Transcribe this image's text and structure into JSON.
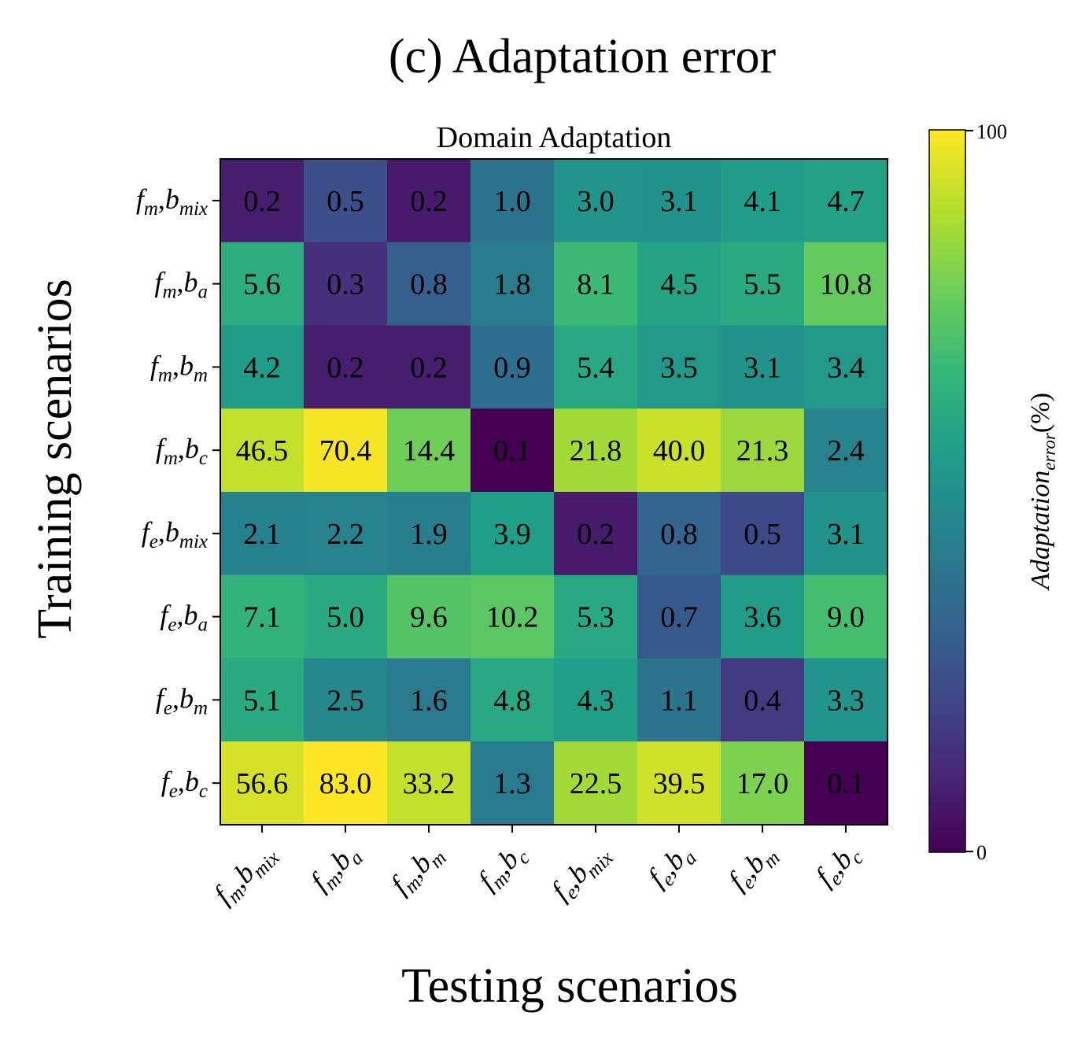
{
  "figure": {
    "suptitle": "(c) Adaptation error",
    "xlabel": "Testing scenarios",
    "ylabel": "Training scenarios"
  },
  "colorbar": {
    "label_main": "Adaptation",
    "label_sub": "error",
    "label_suffix": "(%)",
    "min": 0,
    "max": 100,
    "min_label": "0",
    "max_label": "100",
    "colormap": "viridis",
    "colormap_stops": [
      "#440154",
      "#482878",
      "#3e4a89",
      "#31688e",
      "#26828e",
      "#1f9e89",
      "#35b779",
      "#6ece58",
      "#b5de2b",
      "#fde725"
    ]
  },
  "chart_data": {
    "type": "heatmap",
    "title": "Domain Adaptation",
    "xlabel": "Testing scenarios",
    "ylabel": "Training scenarios",
    "x_ticks": [
      {
        "f": "f",
        "fsub": "m",
        "b": "b",
        "bsub": "mix"
      },
      {
        "f": "f",
        "fsub": "m",
        "b": "b",
        "bsub": "a"
      },
      {
        "f": "f",
        "fsub": "m",
        "b": "b",
        "bsub": "m"
      },
      {
        "f": "f",
        "fsub": "m",
        "b": "b",
        "bsub": "c"
      },
      {
        "f": "f",
        "fsub": "e",
        "b": "b",
        "bsub": "mix"
      },
      {
        "f": "f",
        "fsub": "e",
        "b": "b",
        "bsub": "a"
      },
      {
        "f": "f",
        "fsub": "e",
        "b": "b",
        "bsub": "m"
      },
      {
        "f": "f",
        "fsub": "e",
        "b": "b",
        "bsub": "c"
      }
    ],
    "y_ticks": [
      {
        "f": "f",
        "fsub": "m",
        "b": "b",
        "bsub": "mix"
      },
      {
        "f": "f",
        "fsub": "m",
        "b": "b",
        "bsub": "a"
      },
      {
        "f": "f",
        "fsub": "m",
        "b": "b",
        "bsub": "m"
      },
      {
        "f": "f",
        "fsub": "m",
        "b": "b",
        "bsub": "c"
      },
      {
        "f": "f",
        "fsub": "e",
        "b": "b",
        "bsub": "mix"
      },
      {
        "f": "f",
        "fsub": "e",
        "b": "b",
        "bsub": "a"
      },
      {
        "f": "f",
        "fsub": "e",
        "b": "b",
        "bsub": "m"
      },
      {
        "f": "f",
        "fsub": "e",
        "b": "b",
        "bsub": "c"
      }
    ],
    "values": [
      [
        "0.2",
        "0.5",
        "0.2",
        "1.0",
        "3.0",
        "3.1",
        "4.1",
        "4.7"
      ],
      [
        "5.6",
        "0.3",
        "0.8",
        "1.8",
        "8.1",
        "4.5",
        "5.5",
        "10.8"
      ],
      [
        "4.2",
        "0.2",
        "0.2",
        "0.9",
        "5.4",
        "3.5",
        "3.1",
        "3.4"
      ],
      [
        "46.5",
        "70.4",
        "14.4",
        "0.1",
        "21.8",
        "40.0",
        "21.3",
        "2.4"
      ],
      [
        "2.1",
        "2.2",
        "1.9",
        "3.9",
        "0.2",
        "0.8",
        "0.5",
        "3.1"
      ],
      [
        "7.1",
        "5.0",
        "9.6",
        "10.2",
        "5.3",
        "0.7",
        "3.6",
        "9.0"
      ],
      [
        "5.1",
        "2.5",
        "1.6",
        "4.8",
        "4.3",
        "1.1",
        "0.4",
        "3.3"
      ],
      [
        "56.6",
        "83.0",
        "33.2",
        "1.3",
        "22.5",
        "39.5",
        "17.0",
        "0.1"
      ]
    ],
    "color_positions": [
      [
        0.08,
        0.24,
        0.07,
        0.38,
        0.52,
        0.51,
        0.55,
        0.57
      ],
      [
        0.62,
        0.14,
        0.3,
        0.42,
        0.68,
        0.58,
        0.61,
        0.76
      ],
      [
        0.55,
        0.08,
        0.08,
        0.36,
        0.6,
        0.53,
        0.51,
        0.53
      ],
      [
        0.91,
        0.99,
        0.78,
        0.0,
        0.86,
        0.92,
        0.85,
        0.45
      ],
      [
        0.44,
        0.45,
        0.43,
        0.56,
        0.07,
        0.32,
        0.22,
        0.51
      ],
      [
        0.65,
        0.61,
        0.73,
        0.74,
        0.6,
        0.28,
        0.55,
        0.7
      ],
      [
        0.61,
        0.47,
        0.41,
        0.6,
        0.56,
        0.38,
        0.17,
        0.52
      ],
      [
        0.94,
        1.0,
        0.91,
        0.41,
        0.86,
        0.93,
        0.8,
        0.0
      ]
    ],
    "grid": false
  }
}
